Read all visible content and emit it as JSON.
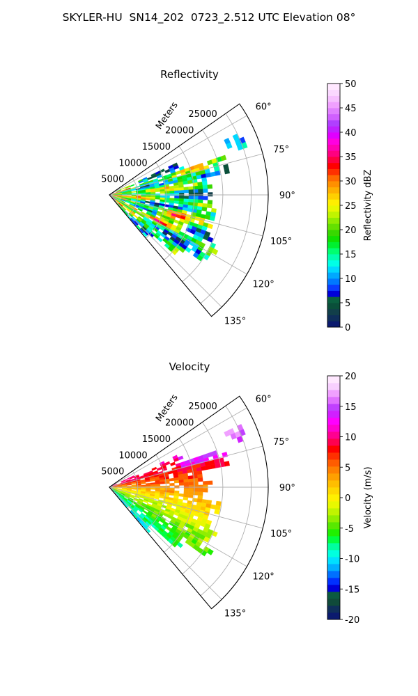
{
  "figure": {
    "title": "SKYLER-HU  SN14_202  0723_2.512 UTC Elevation 08°"
  },
  "chart_data": [
    {
      "type": "polar-sector",
      "title": "Reflectivity",
      "radial_label": "Meters",
      "radial_ticks": [
        5000,
        10000,
        15000,
        20000,
        25000
      ],
      "r_max": 28000,
      "angle_ticks": [
        "60°",
        "75°",
        "90°",
        "105°",
        "120°",
        "135°"
      ],
      "angle_tick_values": [
        60,
        75,
        90,
        105,
        120,
        135
      ],
      "theta_range": [
        55,
        140
      ],
      "grid": true,
      "colorbar": {
        "label": "Reflectivity dBZ",
        "min": 0,
        "max": 50,
        "ticks": [
          "0",
          "5",
          "10",
          "15",
          "20",
          "25",
          "30",
          "35",
          "40",
          "45",
          "50"
        ],
        "tick_values": [
          0,
          5,
          10,
          15,
          20,
          25,
          30,
          35,
          40,
          45,
          50
        ],
        "colors": [
          "#0b1a6e",
          "#0f2e5a",
          "#123f4a",
          "#0a4f3a",
          "#0a6040",
          "#0000d8",
          "#0a3cff",
          "#0078ff",
          "#00a8ff",
          "#00d8ff",
          "#00ffe6",
          "#00ffb0",
          "#00ff70",
          "#00f030",
          "#10e000",
          "#38d800",
          "#64e000",
          "#90ec00",
          "#c0f400",
          "#e8f800",
          "#ffee00",
          "#ffd000",
          "#ffb000",
          "#ff9000",
          "#ff6a00",
          "#ff3000",
          "#ff0000",
          "#ff0040",
          "#ff0080",
          "#ff00b4",
          "#ff00e0",
          "#e000ff",
          "#c020ff",
          "#b040ff",
          "#d060ff",
          "#e080ff",
          "#f0a0ff",
          "#f6c0ff",
          "#fad8ff",
          "#ffe8ff"
        ]
      },
      "palette": [
        "#00ffe6",
        "#00ff80",
        "#40e000",
        "#7ae600",
        "#b8ef00",
        "#e8f600",
        "#ffe200",
        "#ffb800",
        "#ff6a00",
        "#ff1a1a"
      ],
      "field": "reflectivity"
    },
    {
      "type": "polar-sector",
      "title": "Velocity",
      "radial_label": "Meters",
      "radial_ticks": [
        5000,
        10000,
        15000,
        20000,
        25000
      ],
      "r_max": 28000,
      "angle_ticks": [
        "60°",
        "75°",
        "90°",
        "105°",
        "120°",
        "135°"
      ],
      "angle_tick_values": [
        60,
        75,
        90,
        105,
        120,
        135
      ],
      "theta_range": [
        55,
        140
      ],
      "grid": true,
      "colorbar": {
        "label": "Velocity (m/s)",
        "min": -20,
        "max": 20,
        "ticks": [
          "-20",
          "-15",
          "-10",
          "-5",
          "0",
          "5",
          "10",
          "15",
          "20"
        ],
        "tick_values": [
          -20,
          -15,
          -10,
          -5,
          0,
          5,
          10,
          15,
          20
        ],
        "colors": [
          "#0b1a6e",
          "#0f2e5a",
          "#104a3a",
          "#0b5a40",
          "#0000d8",
          "#0030ff",
          "#0070ff",
          "#00b0ff",
          "#00e0ff",
          "#00ffe0",
          "#00ffa0",
          "#00ff40",
          "#20f000",
          "#58e800",
          "#90ee00",
          "#c0f400",
          "#e8f800",
          "#fff000",
          "#ffd800",
          "#ffbe00",
          "#ffa000",
          "#ff8000",
          "#ff5c00",
          "#ff3000",
          "#ff0000",
          "#ff0050",
          "#ff0090",
          "#ff00d0",
          "#ff00ff",
          "#d020ff",
          "#c040ff",
          "#e070ff",
          "#f0a0ff",
          "#f8d0ff",
          "#ffe8ff"
        ]
      },
      "field": "velocity"
    }
  ]
}
